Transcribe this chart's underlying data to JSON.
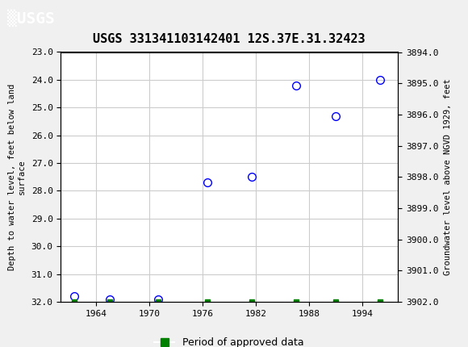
{
  "title": "USGS 331341103142401 12S.37E.31.32423",
  "ylabel_left": "Depth to water level, feet below land\nsurface",
  "ylabel_right": "Groundwater level above NGVD 1929, feet",
  "header_color": "#006633",
  "header_text": "USGS",
  "background_color": "#f0f0f0",
  "plot_bg_color": "#ffffff",
  "grid_color": "#cccccc",
  "xlim": [
    1960,
    1998
  ],
  "ylim_left": [
    23.0,
    32.0
  ],
  "ylim_right": [
    3894.0,
    3902.0
  ],
  "xticks": [
    1964,
    1970,
    1976,
    1982,
    1988,
    1994
  ],
  "yticks_left": [
    23.0,
    24.0,
    25.0,
    26.0,
    27.0,
    28.0,
    29.0,
    30.0,
    31.0,
    32.0
  ],
  "yticks_right": [
    3894.0,
    3895.0,
    3896.0,
    3897.0,
    3898.0,
    3899.0,
    3900.0,
    3901.0,
    3902.0
  ],
  "data_points_x": [
    1961.5,
    1965.5,
    1971.0,
    1976.5,
    1981.5,
    1986.5,
    1991.0,
    1996.0
  ],
  "data_points_y": [
    31.8,
    31.9,
    31.9,
    27.7,
    27.5,
    24.2,
    25.3,
    24.0
  ],
  "green_bar_x": [
    1961.5,
    1965.5,
    1971.0,
    1976.5,
    1981.5,
    1986.5,
    1991.0,
    1996.0
  ],
  "green_bar_y": [
    32.0,
    32.0,
    32.0,
    32.0,
    32.0,
    32.0,
    32.0,
    32.0
  ],
  "marker_color": "blue",
  "marker_face": "none",
  "marker_size": 7,
  "legend_label": "Period of approved data",
  "legend_color": "#008000"
}
